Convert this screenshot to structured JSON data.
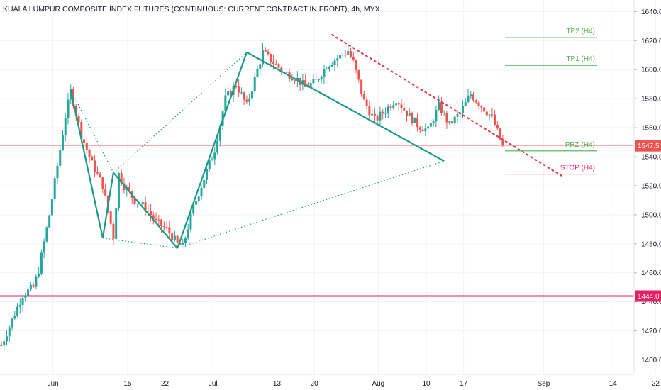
{
  "title": "KUALA LUMPUR COMPOSITE INDEX FUTURES (CONTINUOUS: CURRENT CONTRACT IN FRONT), 4h, MYX",
  "colors": {
    "up": "#26a69a",
    "down": "#ef5350",
    "pattern": "#1a9a85",
    "tp": "#4caf50",
    "stop": "#e91e63",
    "trend": "#e53950",
    "price_line": "#f7a6a0",
    "axis_text": "#131722",
    "border": "#e0e3eb"
  },
  "chart_data": {
    "type": "candlestick",
    "title": "KUALA LUMPUR COMPOSITE INDEX FUTURES (CONTINUOUS: CURRENT CONTRACT IN FRONT), 4h, MYX",
    "ylim": [
      1390,
      1648
    ],
    "y_ticks": [
      1400,
      1420,
      1440,
      1460,
      1480,
      1500,
      1520,
      1540,
      1560,
      1580,
      1600,
      1620,
      1640
    ],
    "x_ticks": [
      {
        "label": "Jun",
        "t": 7
      },
      {
        "label": "15",
        "t": 21
      },
      {
        "label": "22",
        "t": 28
      },
      {
        "label": "Jul",
        "t": 37
      },
      {
        "label": "13",
        "t": 49
      },
      {
        "label": "20",
        "t": 56
      },
      {
        "label": "Aug",
        "t": 68
      },
      {
        "label": "10",
        "t": 77
      },
      {
        "label": "17",
        "t": 84
      },
      {
        "label": "Sep",
        "t": 99
      },
      {
        "label": "14",
        "t": 112
      },
      {
        "label": "22",
        "t": 120
      }
    ],
    "price_path": [
      [
        0,
        1410
      ],
      [
        4,
        1445
      ],
      [
        6,
        1450
      ],
      [
        7,
        1462
      ],
      [
        9,
        1500
      ],
      [
        11,
        1545
      ],
      [
        12,
        1568
      ],
      [
        13,
        1585
      ],
      [
        15,
        1555
      ],
      [
        17,
        1535
      ],
      [
        19,
        1520
      ],
      [
        21,
        1485
      ],
      [
        22,
        1528
      ],
      [
        23,
        1520
      ],
      [
        25,
        1510
      ],
      [
        27,
        1505
      ],
      [
        29,
        1495
      ],
      [
        31,
        1490
      ],
      [
        33,
        1480
      ],
      [
        34,
        1478
      ],
      [
        36,
        1505
      ],
      [
        38,
        1525
      ],
      [
        40,
        1545
      ],
      [
        42,
        1580
      ],
      [
        44,
        1590
      ],
      [
        46,
        1575
      ],
      [
        48,
        1600
      ],
      [
        49,
        1612
      ],
      [
        51,
        1605
      ],
      [
        53,
        1598
      ],
      [
        55,
        1595
      ],
      [
        57,
        1588
      ],
      [
        59,
        1592
      ],
      [
        61,
        1603
      ],
      [
        63,
        1608
      ],
      [
        65,
        1613
      ],
      [
        66,
        1605
      ],
      [
        68,
        1578
      ],
      [
        70,
        1565
      ],
      [
        72,
        1572
      ],
      [
        74,
        1580
      ],
      [
        76,
        1570
      ],
      [
        78,
        1562
      ],
      [
        80,
        1558
      ],
      [
        82,
        1575
      ],
      [
        84,
        1562
      ],
      [
        86,
        1570
      ],
      [
        88,
        1583
      ],
      [
        90,
        1575
      ],
      [
        92,
        1567
      ],
      [
        94,
        1547
      ]
    ],
    "current_price": 1547.5,
    "horizontal_levels": [
      {
        "price": 1444.0,
        "label": "1444.0"
      }
    ],
    "trade_levels": [
      {
        "name": "TP2 (H4)",
        "price": 1622,
        "color": "tp"
      },
      {
        "name": "TP1 (H4)",
        "price": 1603,
        "color": "tp"
      },
      {
        "name": "PRZ (H4)",
        "price": 1544,
        "color": "tp"
      },
      {
        "name": "STOP (H4)",
        "price": 1528,
        "color": "stop"
      }
    ],
    "pattern_points": [
      {
        "t": 13,
        "price": 1586
      },
      {
        "t": 19,
        "price": 1484
      },
      {
        "t": 21,
        "price": 1529
      },
      {
        "t": 33,
        "price": 1477
      },
      {
        "t": 46,
        "price": 1612
      },
      {
        "t": 83,
        "price": 1537
      }
    ],
    "trend_line": [
      {
        "t": 62,
        "price": 1624
      },
      {
        "t": 105,
        "price": 1527
      }
    ],
    "badges": [
      {
        "price": 1547.5,
        "label": "1547.5",
        "color": "down"
      },
      {
        "price": 1444.0,
        "label": "1444.0",
        "color": "stop"
      }
    ]
  }
}
